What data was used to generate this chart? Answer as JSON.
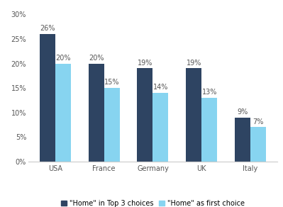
{
  "categories": [
    "USA",
    "France",
    "Germany",
    "UK",
    "Italy"
  ],
  "top3_values": [
    26,
    20,
    19,
    19,
    9
  ],
  "first_values": [
    20,
    15,
    14,
    13,
    7
  ],
  "ylim": [
    0,
    30
  ],
  "yticks": [
    0,
    5,
    10,
    15,
    20,
    25,
    30
  ],
  "ytick_labels": [
    "0%",
    "5%",
    "10%",
    "15%",
    "20%",
    "25%",
    "30%"
  ],
  "legend_label_top3": "\"Home\" in Top 3 choices",
  "legend_label_first": "\"Home\" as first choice",
  "bar_width": 0.32,
  "label_fontsize": 7,
  "tick_fontsize": 7,
  "legend_fontsize": 7,
  "top3_dark": "#2e4462",
  "first_light": "#87d4f0"
}
